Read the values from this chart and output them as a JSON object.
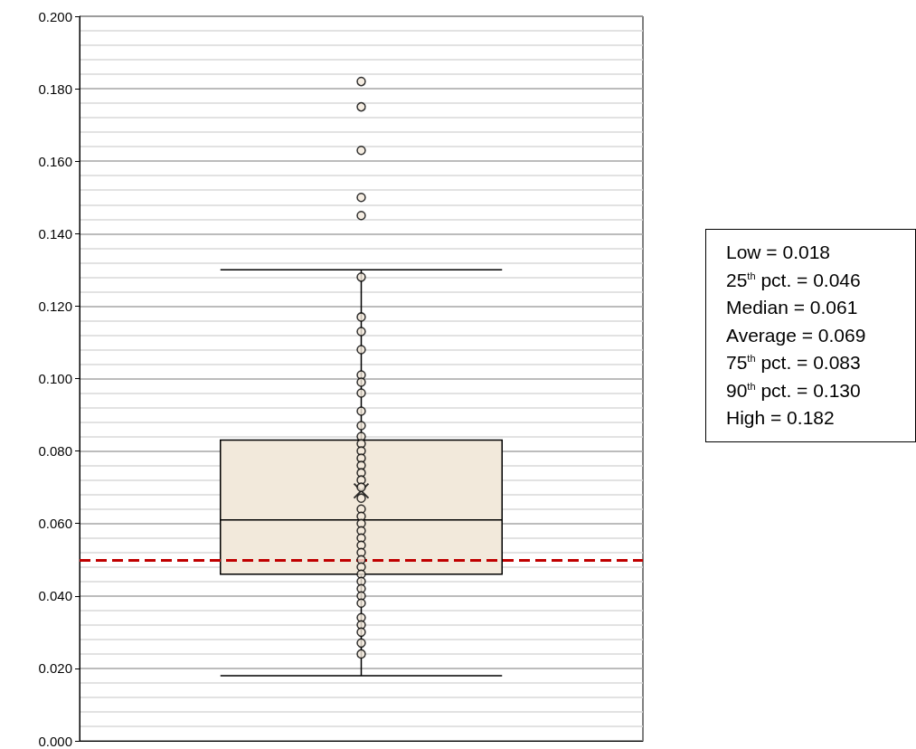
{
  "chart_data": {
    "type": "box",
    "categories": [
      null
    ],
    "boxes": [
      {
        "low": 0.018,
        "q1": 0.046,
        "median": 0.061,
        "q3": 0.083,
        "high": 0.13,
        "mean": 0.069,
        "outliers": [
          0.182,
          0.175,
          0.163,
          0.15,
          0.145
        ]
      }
    ],
    "color": "#f2e9db",
    "series": [
      {
        "type": "scatter",
        "color": "#f2e9db",
        "marker": "circle",
        "x": [
          null,
          null,
          null,
          null,
          null,
          null,
          null,
          null,
          null,
          null,
          null,
          null,
          null,
          null,
          null,
          null,
          null,
          null,
          null,
          null,
          null,
          null,
          null,
          null,
          null,
          null,
          null,
          null,
          null,
          null,
          null,
          null,
          null,
          null,
          null,
          null,
          null
        ],
        "values": [
          0.128,
          0.117,
          0.113,
          0.108,
          0.101,
          0.099,
          0.096,
          0.091,
          0.087,
          0.084,
          0.082,
          0.08,
          0.078,
          0.076,
          0.074,
          0.072,
          0.07,
          0.067,
          0.064,
          0.062,
          0.06,
          0.058,
          0.056,
          0.054,
          0.052,
          0.05,
          0.048,
          0.046,
          0.044,
          0.042,
          0.04,
          0.038,
          0.034,
          0.032,
          0.03,
          0.027,
          0.024
        ]
      }
    ],
    "ylim": [
      0,
      0.2
    ],
    "yticks": [
      {
        "value": 0,
        "label": "0.000"
      },
      {
        "value": 0.02,
        "label": "0.020"
      },
      {
        "value": 0.04,
        "label": "0.040"
      },
      {
        "value": 0.06,
        "label": "0.060"
      },
      {
        "value": 0.08,
        "label": "0.080"
      },
      {
        "value": 0.1,
        "label": "0.100"
      },
      {
        "value": 0.12,
        "label": "0.120"
      },
      {
        "value": 0.14,
        "label": "0.140"
      },
      {
        "value": 0.16,
        "label": "0.160"
      },
      {
        "value": 0.18,
        "label": "0.180"
      },
      {
        "value": 0.2,
        "label": "0.200"
      }
    ],
    "ref_lines": [
      {
        "axis": "y",
        "value": 0.05,
        "color": "#c00000",
        "line_style": "dashed"
      }
    ],
    "annotations": [
      "Low = 0.018",
      "25$^{th}$ pct. = 0.046",
      "Median = 0.061",
      "Average = 0.069",
      "75$^{th}$ pct. = 0.083",
      "90$^{th}$ pct. = 0.130",
      "High = 0.182"
    ],
    "grid": true
  }
}
